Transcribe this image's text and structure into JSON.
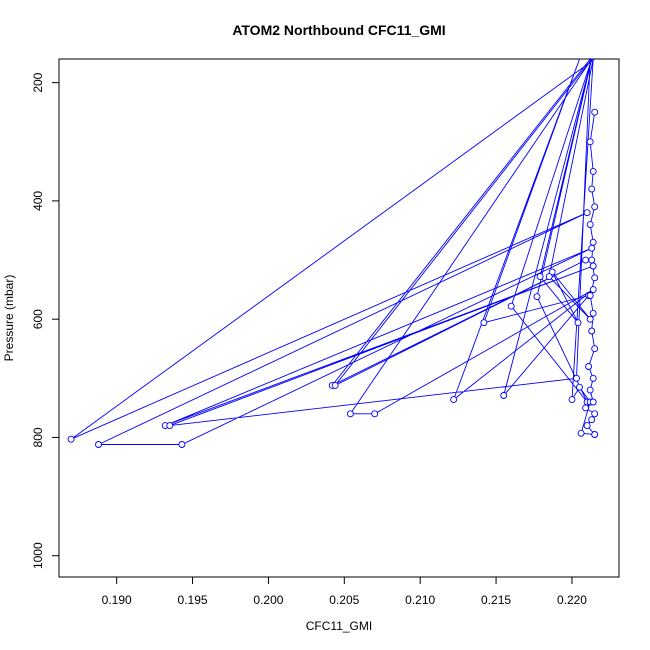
{
  "chart_data": {
    "type": "line",
    "title": "ATOM2 Northbound CFC11_GMI",
    "xlabel": "CFC11_GMI",
    "ylabel": "Pressure (mbar)",
    "xlim": [
      0.1862,
      0.2231
    ],
    "ylim": [
      1036,
      160
    ],
    "y_reversed": true,
    "xticks": [
      0.19,
      0.195,
      0.2,
      0.205,
      0.21,
      0.215,
      0.22
    ],
    "xtick_labels": [
      "0.190",
      "0.195",
      "0.200",
      "0.205",
      "0.210",
      "0.215",
      "0.220"
    ],
    "yticks": [
      200,
      400,
      600,
      800,
      1000
    ],
    "ytick_labels": [
      "200",
      "400",
      "600",
      "800",
      "1000"
    ],
    "grid": false,
    "color": "#0000ff",
    "markers": "open-circle",
    "x": [
      0.2215,
      0.187,
      0.221,
      0.1888,
      0.1943,
      0.2213,
      0.1932,
      0.2214,
      0.1935,
      0.2203,
      0.2212,
      0.2042,
      0.2209,
      0.2044,
      0.2213,
      0.2054,
      0.207,
      0.2214,
      0.2122,
      0.2205,
      0.2142,
      0.2211,
      0.2155,
      0.2213,
      0.216,
      0.221,
      0.2177,
      0.2213,
      0.2179,
      0.2204,
      0.2187,
      0.2212,
      0.2185,
      0.2214,
      0.22,
      0.2205,
      0.2212,
      0.2206,
      0.2215,
      0.221,
      0.2213,
      0.2215,
      0.2209,
      0.2214,
      0.2212,
      0.2214,
      0.2211,
      0.2215,
      0.2213,
      0.2214,
      0.2212,
      0.2215,
      0.2213,
      0.2214,
      0.2212,
      0.2215,
      0.2213,
      0.2214,
      0.2212,
      0.2215
    ],
    "y": [
      160,
      803,
      420,
      812,
      812,
      480,
      780,
      510,
      780,
      700,
      160,
      712,
      500,
      712,
      160,
      760,
      760,
      550,
      736,
      160,
      606,
      560,
      729,
      160,
      578,
      740,
      562,
      160,
      528,
      606,
      520,
      600,
      528,
      160,
      736,
      715,
      740,
      793,
      795,
      780,
      770,
      760,
      750,
      740,
      720,
      700,
      680,
      650,
      620,
      590,
      560,
      530,
      500,
      470,
      440,
      410,
      380,
      350,
      300,
      250
    ]
  }
}
